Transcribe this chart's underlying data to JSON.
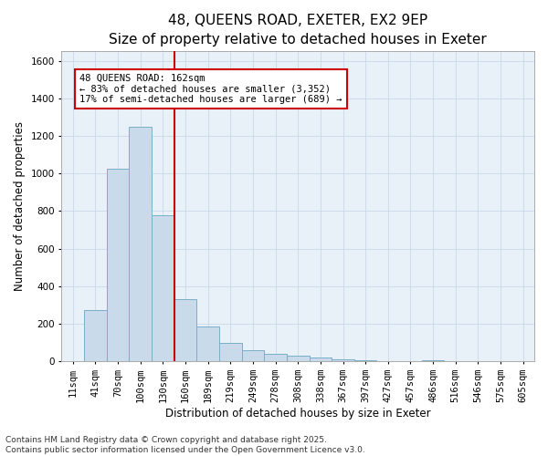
{
  "title_line1": "48, QUEENS ROAD, EXETER, EX2 9EP",
  "title_line2": "Size of property relative to detached houses in Exeter",
  "xlabel": "Distribution of detached houses by size in Exeter",
  "ylabel": "Number of detached properties",
  "categories": [
    "11sqm",
    "41sqm",
    "70sqm",
    "100sqm",
    "130sqm",
    "160sqm",
    "189sqm",
    "219sqm",
    "249sqm",
    "278sqm",
    "308sqm",
    "338sqm",
    "367sqm",
    "397sqm",
    "427sqm",
    "457sqm",
    "486sqm",
    "516sqm",
    "546sqm",
    "575sqm",
    "605sqm"
  ],
  "values": [
    2,
    275,
    1025,
    1250,
    780,
    330,
    185,
    100,
    60,
    40,
    30,
    20,
    10,
    5,
    3,
    2,
    5,
    1,
    0,
    0,
    0
  ],
  "bar_color": "#c9daea",
  "bar_edge_color": "#7aafc8",
  "vline_color": "#cc0000",
  "vline_x_index": 4.5,
  "annotation_text": "48 QUEENS ROAD: 162sqm\n← 83% of detached houses are smaller (3,352)\n17% of semi-detached houses are larger (689) →",
  "annotation_box_edge_color": "#cc0000",
  "ylim": [
    0,
    1650
  ],
  "yticks": [
    0,
    200,
    400,
    600,
    800,
    1000,
    1200,
    1400,
    1600
  ],
  "grid_color": "#c8d8e8",
  "bg_color": "#e8f0f8",
  "footer_text": "Contains HM Land Registry data © Crown copyright and database right 2025.\nContains public sector information licensed under the Open Government Licence v3.0.",
  "title_fontsize": 11,
  "subtitle_fontsize": 10,
  "label_fontsize": 8.5,
  "tick_fontsize": 7.5,
  "annotation_fontsize": 7.5,
  "footer_fontsize": 6.5
}
